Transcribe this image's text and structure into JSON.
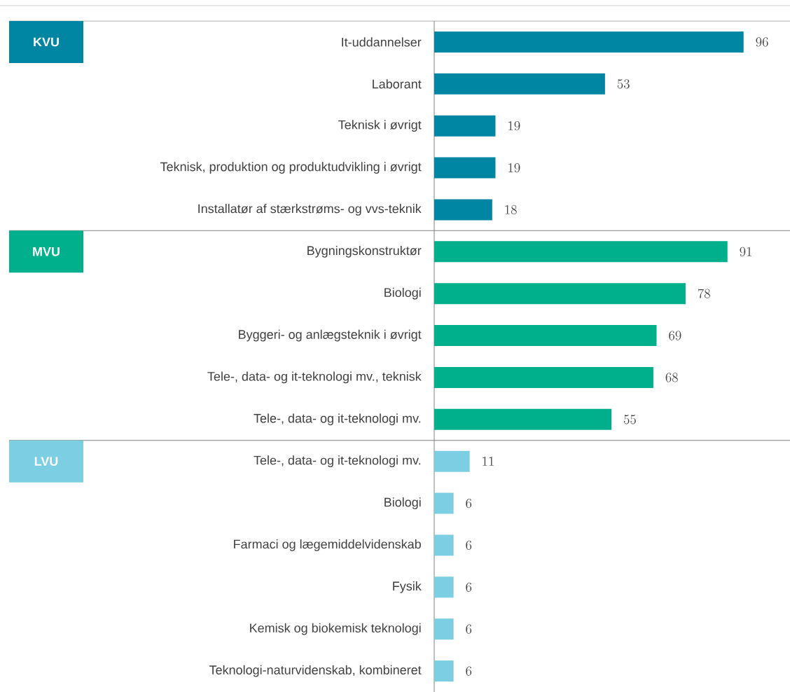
{
  "chart_data": {
    "type": "bar",
    "orientation": "horizontal",
    "data_labels": true,
    "categories": [
      "It-uddannelser",
      "Laborant",
      "Teknisk i øvrigt",
      "Teknisk, produktion og produktudvikling i øvrigt",
      "Installatør af stærkstrøms- og vvs-teknik",
      "Bygningskonstruktør",
      "Biologi",
      "Byggeri- og anlægsteknik i øvrigt",
      "Tele-, data- og it-teknologi mv., teknisk",
      "Tele-, data- og it-teknologi mv.",
      "Tele-, data- og it-teknologi mv.",
      "Biologi",
      "Farmaci og lægemiddelvidenskab",
      "Fysik",
      "Kemisk og biokemisk teknologi",
      "Teknologi-naturvidenskab, kombineret"
    ],
    "values": [
      96,
      53,
      19,
      19,
      18,
      91,
      78,
      69,
      68,
      55,
      11,
      6,
      6,
      6,
      6,
      6
    ],
    "colors": [
      "#0086a3",
      "#0086a3",
      "#0086a3",
      "#0086a3",
      "#0086a3",
      "#00b08c",
      "#00b08c",
      "#00b08c",
      "#00b08c",
      "#00b08c",
      "#7ccfe3",
      "#7ccfe3",
      "#7ccfe3",
      "#7ccfe3",
      "#7ccfe3",
      "#7ccfe3"
    ],
    "annotations": [
      "KVU",
      "MVU",
      "LVU"
    ]
  }
}
